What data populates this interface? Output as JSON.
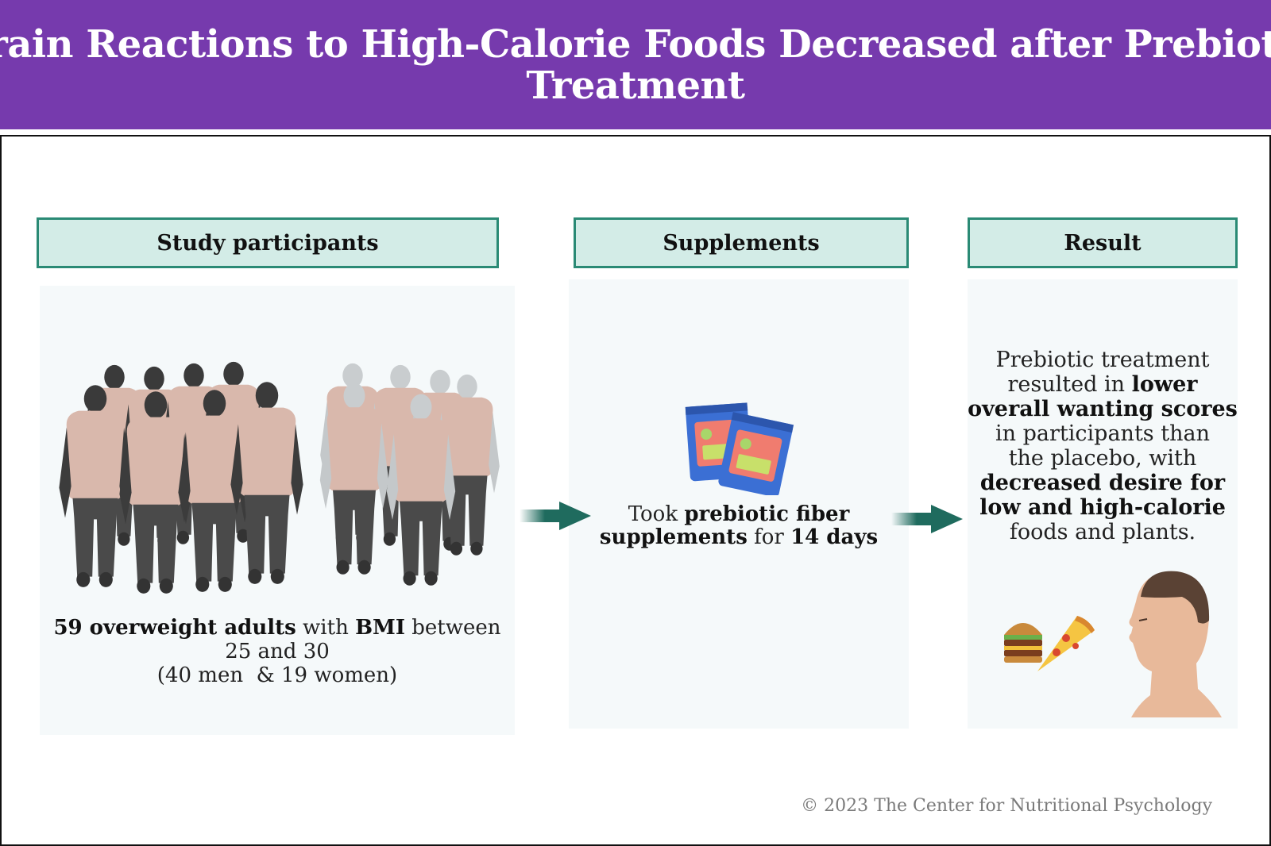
{
  "title": {
    "line1": "Brain Reactions to High-Calorie Foods Decreased after Prebiotic",
    "line2": "Treatment"
  },
  "colors": {
    "title_bg": "#763aad",
    "header_bg": "#d3ece7",
    "header_border": "#2a8a75",
    "arrow": "#1f6b5e"
  },
  "columns": {
    "participants": {
      "header": "Study participants",
      "count": "59 overweight adults",
      "t1": " with ",
      "bmi": "BMI",
      "t2": " between",
      "range": "25 and 30",
      "split": "(40 men  & 19 women)",
      "illustration": "people-group-icon"
    },
    "supplements": {
      "header": "Supplements",
      "t1": "Took ",
      "b1": "prebiotic fiber",
      "b2": "supplements",
      "t2": " for ",
      "b3": "14 days",
      "illustration": "supplement-packets-icon"
    },
    "result": {
      "header": "Result",
      "l1": "Prebiotic treatment",
      "l2a": "resulted in ",
      "l2b": "lower",
      "l3": "overall wanting scores",
      "l4": "in participants than",
      "l5": "the placebo, with",
      "l6": "decreased desire for",
      "l7": "low and high-calorie",
      "l8": "foods and plants.",
      "illustration": "person-food-icon"
    }
  },
  "footer": "© 2023 The Center for Nutritional Psychology"
}
